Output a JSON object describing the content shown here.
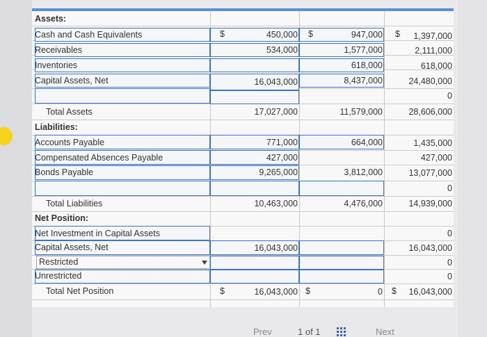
{
  "colors": {
    "accent": "#3b73c9",
    "band": "#5c8fd6",
    "badge": "#f6d21b"
  },
  "rows": [
    {
      "label": "Assets:",
      "bold": true,
      "indent": false
    },
    {
      "label": "Cash and Cash Equivalents",
      "dollar_a": "$",
      "a": "450,000",
      "dollar_b": "$",
      "b": "947,000",
      "dollar_c": "$",
      "c": "1,397,000"
    },
    {
      "label": "Receivables",
      "a": "534,000",
      "b": "1,577,000",
      "c": "2,111,000"
    },
    {
      "label": "Inventories",
      "b": "618,000",
      "c": "618,000"
    },
    {
      "label": "Capital Assets, Net",
      "a": "16,043,000",
      "b": "8,437,000",
      "c": "24,480,000"
    },
    {
      "label": "",
      "c": "0"
    },
    {
      "label": "Total Assets",
      "indent": true,
      "a": "17,027,000",
      "b": "11,579,000",
      "c": "28,606,000"
    },
    {
      "label": "Liabilities:",
      "bold": true
    },
    {
      "label": "Accounts Payable",
      "a": "771,000",
      "b": "664,000",
      "c": "1,435,000"
    },
    {
      "label": "Compensated Absences Payable",
      "a": "427,000",
      "c": "427,000"
    },
    {
      "label": "Bonds Payable",
      "a": "9,265,000",
      "b": "3,812,000",
      "c": "13,077,000"
    },
    {
      "label": "",
      "c": "0"
    },
    {
      "label": "Total Liabilities",
      "indent": true,
      "a": "10,463,000",
      "b": "4,476,000",
      "c": "14,939,000"
    },
    {
      "label": "Net Position:",
      "bold": true
    },
    {
      "label": "Net Investment in Capital Assets",
      "c": "0"
    },
    {
      "label": "Capital Assets, Net",
      "a": "16,043,000",
      "c": "16,043,000"
    },
    {
      "label": "Restricted",
      "c": "0"
    },
    {
      "label": "Unrestricted",
      "c": "0"
    },
    {
      "label": "Total Net Position",
      "indent": true,
      "dollar_a": "$",
      "a": "16,043,000",
      "dollar_b": "$",
      "b": "0",
      "dollar_c": "$",
      "c": "16,043,000"
    }
  ],
  "footer": {
    "prev": "Prev",
    "page": "1 of 1",
    "next": "Next"
  }
}
